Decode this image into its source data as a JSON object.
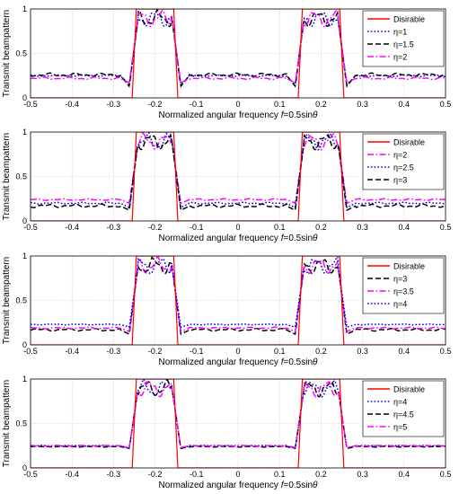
{
  "chart_data": [
    {
      "type": "line",
      "ylabel": "Transmit beampattern",
      "xlabel": "Normalized angular frequency f=0.5sinθ",
      "xlim": [
        -0.5,
        0.5
      ],
      "ylim": [
        0,
        1
      ],
      "xticks": [
        -0.5,
        -0.4,
        -0.3,
        -0.2,
        -0.1,
        0,
        0.1,
        0.2,
        0.3,
        0.4,
        0.5
      ],
      "yticks": [
        0,
        0.5,
        1
      ],
      "grid": true,
      "legend_position": "top-right",
      "desired": {
        "name": "Disirable",
        "x": [
          -0.5,
          -0.255,
          -0.245,
          -0.155,
          -0.145,
          0.145,
          0.155,
          0.245,
          0.255,
          0.5
        ],
        "y": [
          0,
          0,
          1,
          1,
          0,
          0,
          1,
          1,
          0,
          0
        ]
      },
      "series": [
        {
          "name": "η=1",
          "color": "#0000ff",
          "dash": "dot",
          "floor": 0.25,
          "ripple": 0.01,
          "dip": 0.15
        },
        {
          "name": "η=1.5",
          "color": "#000000",
          "dash": "dash",
          "floor": 0.26,
          "ripple": 0.02,
          "dip": 0.13
        },
        {
          "name": "η=2",
          "color": "#ff00ff",
          "dash": "dashdot",
          "floor": 0.22,
          "ripple": 0.015,
          "dip": 0.17
        }
      ]
    },
    {
      "type": "line",
      "ylabel": "Transmit beampattern",
      "xlabel": "Normalized angular frequency f=0.5sinθ",
      "xlim": [
        -0.5,
        0.5
      ],
      "ylim": [
        0,
        1
      ],
      "xticks": [
        -0.5,
        -0.4,
        -0.3,
        -0.2,
        -0.1,
        0,
        0.1,
        0.2,
        0.3,
        0.4,
        0.5
      ],
      "yticks": [
        0,
        0.5,
        1
      ],
      "grid": true,
      "legend_position": "top-right",
      "desired": {
        "name": "Disirable",
        "x": [
          -0.5,
          -0.255,
          -0.245,
          -0.155,
          -0.145,
          0.145,
          0.155,
          0.245,
          0.255,
          0.5
        ],
        "y": [
          0,
          0,
          1,
          1,
          0,
          0,
          1,
          1,
          0,
          0
        ]
      },
      "series": [
        {
          "name": "η=2",
          "color": "#ff00ff",
          "dash": "dashdot",
          "floor": 0.24,
          "ripple": 0.01,
          "dip": 0.2
        },
        {
          "name": "η=2.5",
          "color": "#0000ff",
          "dash": "dot",
          "floor": 0.2,
          "ripple": 0.01,
          "dip": 0.15
        },
        {
          "name": "η=3",
          "color": "#000000",
          "dash": "dash",
          "floor": 0.17,
          "ripple": 0.02,
          "dip": 0.12
        }
      ]
    },
    {
      "type": "line",
      "ylabel": "Transmit beampattern",
      "xlabel": "Normalized angular frequency f=0.5sinθ",
      "xlim": [
        -0.5,
        0.5
      ],
      "ylim": [
        0,
        1
      ],
      "xticks": [
        -0.5,
        -0.4,
        -0.3,
        -0.2,
        -0.1,
        0,
        0.1,
        0.2,
        0.3,
        0.4,
        0.5
      ],
      "yticks": [
        0,
        0.5,
        1
      ],
      "grid": true,
      "legend_position": "top-right",
      "desired": {
        "name": "Disirable",
        "x": [
          -0.5,
          -0.255,
          -0.245,
          -0.155,
          -0.145,
          0.145,
          0.155,
          0.245,
          0.255,
          0.5
        ],
        "y": [
          0,
          0,
          1,
          1,
          0,
          0,
          1,
          1,
          0,
          0
        ]
      },
      "series": [
        {
          "name": "η=3",
          "color": "#000000",
          "dash": "dash",
          "floor": 0.17,
          "ripple": 0.015,
          "dip": 0.12
        },
        {
          "name": "η=3.5",
          "color": "#ff00ff",
          "dash": "dashdot",
          "floor": 0.19,
          "ripple": 0.01,
          "dip": 0.15
        },
        {
          "name": "η=4",
          "color": "#0000ff",
          "dash": "dot",
          "floor": 0.23,
          "ripple": 0.005,
          "dip": 0.2
        }
      ]
    },
    {
      "type": "line",
      "ylabel": "Transmit beampattern",
      "xlabel": "Normalized angular frequency f=0.5sinθ",
      "xlim": [
        -0.5,
        0.5
      ],
      "ylim": [
        0,
        1
      ],
      "xticks": [
        -0.5,
        -0.4,
        -0.3,
        -0.2,
        -0.1,
        0,
        0.1,
        0.2,
        0.3,
        0.4,
        0.5
      ],
      "yticks": [
        0,
        0.5,
        1
      ],
      "grid": true,
      "legend_position": "top-right",
      "desired": {
        "name": "Disirable",
        "x": [
          -0.5,
          -0.255,
          -0.245,
          -0.155,
          -0.145,
          0.145,
          0.155,
          0.245,
          0.255,
          0.5
        ],
        "y": [
          0,
          0,
          1,
          1,
          0,
          0,
          1,
          1,
          0,
          0
        ]
      },
      "series": [
        {
          "name": "η=4",
          "color": "#0000ff",
          "dash": "dot",
          "floor": 0.25,
          "ripple": 0.005,
          "dip": 0.22
        },
        {
          "name": "η=4.5",
          "color": "#000000",
          "dash": "dash",
          "floor": 0.24,
          "ripple": 0.005,
          "dip": 0.22
        },
        {
          "name": "η=5",
          "color": "#ff00ff",
          "dash": "dashdot",
          "floor": 0.25,
          "ripple": 0.005,
          "dip": 0.23
        }
      ]
    }
  ],
  "axis_labels": {
    "ylabel": "Transmit beampattern",
    "xlabel_prefix": "Normalized angular frequency ",
    "xlabel_var": "f",
    "xlabel_suffix": "=0.5sin",
    "xlabel_theta": "θ"
  }
}
